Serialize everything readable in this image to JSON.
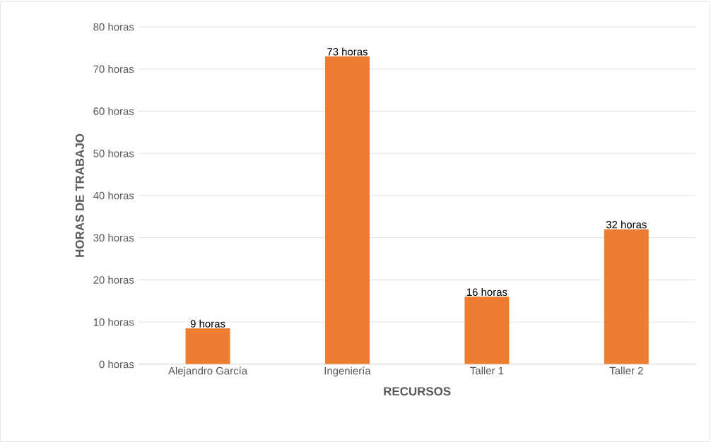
{
  "chart_data": {
    "type": "bar",
    "xlabel": "RECURSOS",
    "ylabel": "HORAS DE TRABAJO",
    "categories": [
      "Alejandro García",
      "Ingeniería",
      "Taller 1",
      "Taller 2"
    ],
    "values": [
      8.5,
      73,
      16,
      32
    ],
    "value_labels": [
      "9 horas",
      "73 horas",
      "16 horas",
      "32 horas"
    ],
    "color": "#ed7d31",
    "ylim": [
      0,
      80
    ],
    "yticks": [
      {
        "value": 0,
        "label": "0 horas"
      },
      {
        "value": 10,
        "label": "10 horas"
      },
      {
        "value": 20,
        "label": "20 horas"
      },
      {
        "value": 30,
        "label": "30 horas"
      },
      {
        "value": 40,
        "label": "40 horas"
      },
      {
        "value": 50,
        "label": "50 horas"
      },
      {
        "value": 60,
        "label": "60 horas"
      },
      {
        "value": 70,
        "label": "70 horas"
      },
      {
        "value": 80,
        "label": "80 horas"
      }
    ],
    "grid": "y"
  }
}
